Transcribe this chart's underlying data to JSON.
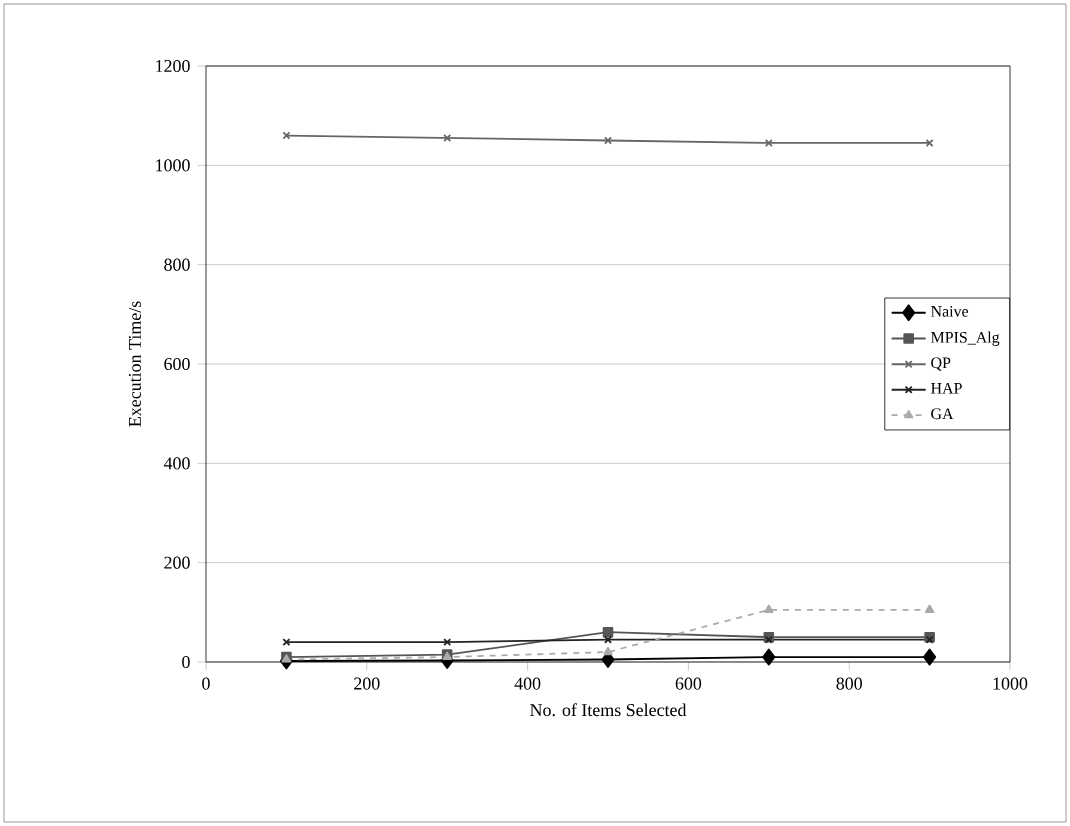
{
  "chart_data": {
    "type": "line",
    "xlabel": "No. of Items Selected",
    "ylabel": "Execution Time/s",
    "x": [
      100,
      300,
      500,
      700,
      900
    ],
    "series": [
      {
        "name": "Naive",
        "color": "#000000",
        "marker": "diamond",
        "line_style": "solid",
        "values": [
          2,
          3,
          5,
          10,
          10
        ]
      },
      {
        "name": "MPIS_Alg",
        "color": "#555555",
        "marker": "square",
        "line_style": "solid",
        "values": [
          10,
          15,
          60,
          50,
          50
        ]
      },
      {
        "name": "QP",
        "color": "#666666",
        "marker": "cross",
        "line_style": "solid",
        "values": [
          1060,
          1055,
          1050,
          1045,
          1045
        ]
      },
      {
        "name": "HAP",
        "color": "#222222",
        "marker": "cross",
        "line_style": "solid",
        "values": [
          40,
          40,
          45,
          45,
          45
        ]
      },
      {
        "name": "GA",
        "color": "#aaaaaa",
        "marker": "triangle",
        "line_style": "dashed",
        "values": [
          5,
          10,
          20,
          105,
          105
        ]
      }
    ],
    "xlim": [
      0,
      1000
    ],
    "xticks": [
      0,
      200,
      400,
      600,
      800,
      1000
    ],
    "ylim": [
      0,
      1200
    ],
    "yticks": [
      0,
      200,
      400,
      600,
      800,
      1000,
      1200
    ],
    "grid": "y",
    "legend": "right"
  }
}
